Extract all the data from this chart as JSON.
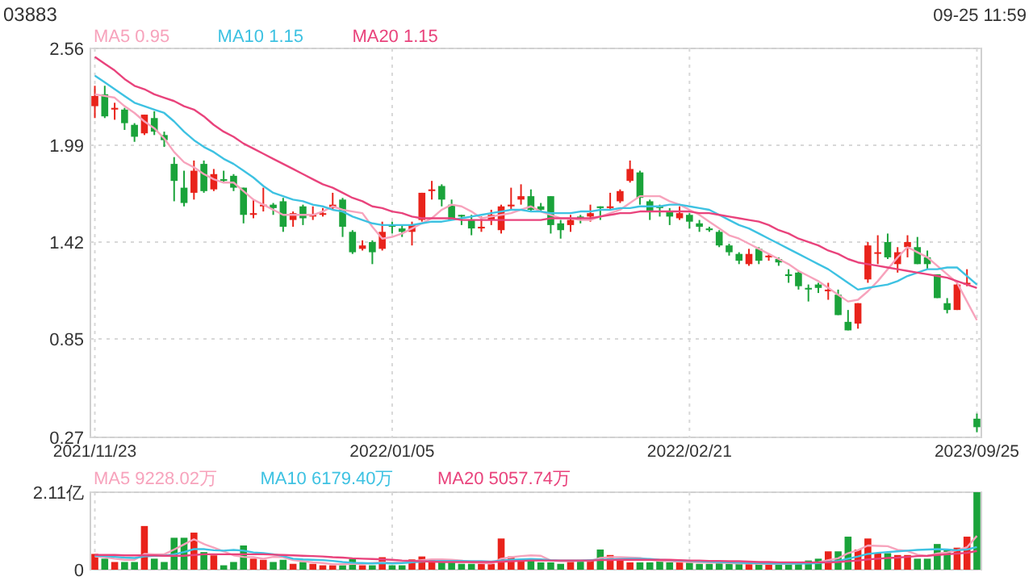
{
  "chart_data": [
    {
      "type": "candlestick",
      "title": "03883",
      "subtitle": "09-25 11:59",
      "categories": [
        "2021/11/23",
        null,
        null,
        null,
        null,
        null,
        null,
        null,
        null,
        null,
        null,
        null,
        null,
        null,
        null,
        null,
        null,
        null,
        null,
        null,
        null,
        null,
        null,
        null,
        null,
        null,
        null,
        null,
        null,
        null,
        "2022/01/05",
        null,
        null,
        null,
        null,
        null,
        null,
        null,
        null,
        null,
        null,
        null,
        null,
        null,
        null,
        null,
        null,
        null,
        null,
        null,
        null,
        null,
        null,
        null,
        null,
        null,
        null,
        null,
        null,
        null,
        "2022/02/21",
        null,
        null,
        null,
        null,
        null,
        null,
        null,
        null,
        null,
        null,
        null,
        null,
        null,
        null,
        null,
        null,
        null,
        null,
        null,
        null,
        null,
        null,
        null,
        null,
        null,
        null,
        null,
        null,
        "2023/09/25"
      ],
      "ohlc": [
        [
          2.22,
          2.34,
          2.15,
          2.28
        ],
        [
          2.29,
          2.34,
          2.15,
          2.16
        ],
        [
          2.2,
          2.24,
          2.14,
          2.21
        ],
        [
          2.2,
          2.21,
          2.08,
          2.12
        ],
        [
          2.11,
          2.12,
          2.01,
          2.04
        ],
        [
          2.06,
          2.17,
          2.05,
          2.17
        ],
        [
          2.15,
          2.19,
          2.05,
          2.07
        ],
        [
          2.05,
          2.07,
          1.98,
          2.02
        ],
        [
          1.88,
          1.92,
          1.66,
          1.78
        ],
        [
          1.74,
          1.84,
          1.63,
          1.65
        ],
        [
          1.71,
          1.9,
          1.67,
          1.84
        ],
        [
          1.88,
          1.9,
          1.71,
          1.72
        ],
        [
          1.73,
          1.85,
          1.72,
          1.82
        ],
        [
          1.79,
          1.84,
          1.77,
          1.78
        ],
        [
          1.81,
          1.82,
          1.72,
          1.74
        ],
        [
          1.74,
          1.74,
          1.53,
          1.58
        ],
        [
          1.58,
          1.67,
          1.56,
          1.59
        ],
        [
          1.63,
          1.74,
          1.6,
          1.64
        ],
        [
          1.64,
          1.65,
          1.58,
          1.62
        ],
        [
          1.66,
          1.68,
          1.48,
          1.51
        ],
        [
          1.55,
          1.6,
          1.51,
          1.59
        ],
        [
          1.63,
          1.64,
          1.52,
          1.56
        ],
        [
          1.57,
          1.63,
          1.55,
          1.58
        ],
        [
          1.58,
          1.62,
          1.57,
          1.59
        ],
        [
          1.62,
          1.71,
          1.61,
          1.64
        ],
        [
          1.67,
          1.68,
          1.45,
          1.51
        ],
        [
          1.48,
          1.49,
          1.35,
          1.36
        ],
        [
          1.38,
          1.43,
          1.37,
          1.4
        ],
        [
          1.42,
          1.43,
          1.29,
          1.36
        ],
        [
          1.38,
          1.54,
          1.37,
          1.48
        ],
        [
          1.52,
          1.54,
          1.47,
          1.51
        ],
        [
          1.5,
          1.52,
          1.45,
          1.48
        ],
        [
          1.48,
          1.54,
          1.4,
          1.52
        ],
        [
          1.55,
          1.71,
          1.54,
          1.71
        ],
        [
          1.72,
          1.78,
          1.67,
          1.73
        ],
        [
          1.75,
          1.76,
          1.63,
          1.67
        ],
        [
          1.64,
          1.67,
          1.55,
          1.55
        ],
        [
          1.58,
          1.58,
          1.52,
          1.57
        ],
        [
          1.55,
          1.58,
          1.46,
          1.5
        ],
        [
          1.5,
          1.57,
          1.48,
          1.51
        ],
        [
          1.55,
          1.61,
          1.52,
          1.58
        ],
        [
          1.49,
          1.64,
          1.47,
          1.63
        ],
        [
          1.63,
          1.74,
          1.61,
          1.64
        ],
        [
          1.67,
          1.76,
          1.64,
          1.69
        ],
        [
          1.69,
          1.73,
          1.6,
          1.61
        ],
        [
          1.63,
          1.65,
          1.6,
          1.61
        ],
        [
          1.69,
          1.69,
          1.47,
          1.52
        ],
        [
          1.53,
          1.55,
          1.44,
          1.49
        ],
        [
          1.52,
          1.58,
          1.48,
          1.55
        ],
        [
          1.57,
          1.58,
          1.53,
          1.56
        ],
        [
          1.57,
          1.64,
          1.54,
          1.59
        ],
        [
          1.63,
          1.63,
          1.55,
          1.62
        ],
        [
          1.62,
          1.71,
          1.61,
          1.63
        ],
        [
          1.66,
          1.73,
          1.65,
          1.72
        ],
        [
          1.78,
          1.9,
          1.77,
          1.85
        ],
        [
          1.83,
          1.84,
          1.64,
          1.68
        ],
        [
          1.66,
          1.67,
          1.55,
          1.6
        ],
        [
          1.63,
          1.64,
          1.57,
          1.62
        ],
        [
          1.6,
          1.62,
          1.52,
          1.57
        ],
        [
          1.56,
          1.63,
          1.55,
          1.59
        ],
        [
          1.58,
          1.59,
          1.5,
          1.54
        ],
        [
          1.53,
          1.55,
          1.48,
          1.51
        ],
        [
          1.5,
          1.51,
          1.48,
          1.49
        ],
        [
          1.48,
          1.49,
          1.39,
          1.4
        ],
        [
          1.4,
          1.41,
          1.34,
          1.36
        ],
        [
          1.35,
          1.36,
          1.29,
          1.31
        ],
        [
          1.29,
          1.38,
          1.28,
          1.35
        ],
        [
          1.38,
          1.39,
          1.29,
          1.31
        ],
        [
          1.33,
          1.35,
          1.31,
          1.34
        ],
        [
          1.32,
          1.33,
          1.28,
          1.3
        ],
        [
          1.23,
          1.26,
          1.18,
          1.22
        ],
        [
          1.24,
          1.25,
          1.14,
          1.16
        ],
        [
          1.15,
          1.17,
          1.07,
          1.15
        ],
        [
          1.17,
          1.18,
          1.12,
          1.15
        ],
        [
          1.13,
          1.18,
          1.08,
          1.14
        ],
        [
          1.11,
          1.14,
          0.99,
          0.99
        ],
        [
          0.95,
          1.02,
          0.9,
          0.9
        ],
        [
          0.94,
          1.06,
          0.91,
          1.06
        ],
        [
          1.2,
          1.42,
          1.18,
          1.4
        ],
        [
          1.36,
          1.46,
          1.29,
          1.36
        ],
        [
          1.42,
          1.47,
          1.32,
          1.33
        ],
        [
          1.29,
          1.39,
          1.24,
          1.36
        ],
        [
          1.39,
          1.46,
          1.33,
          1.42
        ],
        [
          1.39,
          1.45,
          1.29,
          1.29
        ],
        [
          1.33,
          1.37,
          1.26,
          1.29
        ],
        [
          1.23,
          1.23,
          1.09,
          1.09
        ],
        [
          1.06,
          1.09,
          1.0,
          1.02
        ],
        [
          1.02,
          1.19,
          1.02,
          1.17
        ],
        [
          1.17,
          1.26,
          1.16,
          1.18
        ],
        [
          0.38,
          0.41,
          0.3,
          0.33
        ]
      ],
      "colors": [
        "#e9231b",
        "#1aa33a",
        "#e9231b",
        "#1aa33a",
        "#1aa33a",
        "#e9231b",
        "#1aa33a",
        "#1aa33a",
        "#1aa33a",
        "#1aa33a",
        "#e9231b",
        "#1aa33a",
        "#e9231b",
        "#1aa33a",
        "#1aa33a",
        "#1aa33a",
        "#e9231b",
        "#e9231b",
        "#1aa33a",
        "#1aa33a",
        "#e9231b",
        "#1aa33a",
        "#e9231b",
        "#e9231b",
        "#e9231b",
        "#1aa33a",
        "#1aa33a",
        "#e9231b",
        "#1aa33a",
        "#e9231b",
        "#1aa33a",
        "#1aa33a",
        "#e9231b",
        "#e9231b",
        "#e9231b",
        "#1aa33a",
        "#1aa33a",
        "#1aa33a",
        "#1aa33a",
        "#e9231b",
        "#e9231b",
        "#e9231b",
        "#e9231b",
        "#e9231b",
        "#1aa33a",
        "#1aa33a",
        "#1aa33a",
        "#1aa33a",
        "#e9231b",
        "#1aa33a",
        "#e9231b",
        "#1aa33a",
        "#e9231b",
        "#e9231b",
        "#e9231b",
        "#1aa33a",
        "#1aa33a",
        "#1aa33a",
        "#1aa33a",
        "#e9231b",
        "#1aa33a",
        "#1aa33a",
        "#1aa33a",
        "#1aa33a",
        "#1aa33a",
        "#1aa33a",
        "#e9231b",
        "#1aa33a",
        "#e9231b",
        "#1aa33a",
        "#1aa33a",
        "#1aa33a",
        "#1aa33a",
        "#1aa33a",
        "#e9231b",
        "#1aa33a",
        "#1aa33a",
        "#e9231b",
        "#e9231b",
        "#e9231b",
        "#1aa33a",
        "#e9231b",
        "#e9231b",
        "#1aa33a",
        "#1aa33a",
        "#1aa33a",
        "#1aa33a",
        "#e9231b",
        "#e9231b",
        "#1aa33a"
      ],
      "series": [
        {
          "name": "MA5 0.95",
          "type": "line",
          "color": "#f7a3bc",
          "values": [
            2.29,
            2.28,
            2.27,
            2.22,
            2.18,
            2.13,
            2.09,
            2.03,
            1.95,
            1.89,
            1.86,
            1.82,
            1.79,
            1.77,
            1.77,
            1.72,
            1.67,
            1.64,
            1.61,
            1.58,
            1.58,
            1.58,
            1.58,
            1.6,
            1.63,
            1.61,
            1.6,
            1.59,
            1.51,
            1.44,
            1.45,
            1.47,
            1.5,
            1.53,
            1.56,
            1.61,
            1.64,
            1.63,
            1.6,
            1.56,
            1.57,
            1.58,
            1.59,
            1.61,
            1.63,
            1.6,
            1.58,
            1.56,
            1.56,
            1.55,
            1.55,
            1.57,
            1.59,
            1.61,
            1.65,
            1.69,
            1.69,
            1.69,
            1.66,
            1.64,
            1.61,
            1.58,
            1.54,
            1.5,
            1.46,
            1.44,
            1.41,
            1.38,
            1.35,
            1.32,
            1.29,
            1.25,
            1.22,
            1.19,
            1.15,
            1.11,
            1.07,
            1.08,
            1.13,
            1.19,
            1.26,
            1.33,
            1.39,
            1.36,
            1.33,
            1.28,
            1.23,
            1.18,
            1.07,
            0.96
          ]
        },
        {
          "name": "MA10 1.15",
          "type": "line",
          "color": "#3ec2e2",
          "values": [
            2.4,
            2.36,
            2.32,
            2.28,
            2.24,
            2.22,
            2.2,
            2.18,
            2.13,
            2.07,
            2.02,
            1.98,
            1.95,
            1.91,
            1.88,
            1.84,
            1.8,
            1.75,
            1.71,
            1.69,
            1.67,
            1.66,
            1.64,
            1.63,
            1.61,
            1.6,
            1.57,
            1.55,
            1.53,
            1.52,
            1.52,
            1.52,
            1.52,
            1.53,
            1.54,
            1.54,
            1.55,
            1.56,
            1.57,
            1.58,
            1.59,
            1.6,
            1.61,
            1.61,
            1.6,
            1.6,
            1.59,
            1.59,
            1.59,
            1.6,
            1.6,
            1.61,
            1.61,
            1.62,
            1.62,
            1.63,
            1.63,
            1.63,
            1.64,
            1.64,
            1.63,
            1.62,
            1.61,
            1.58,
            1.55,
            1.52,
            1.5,
            1.47,
            1.44,
            1.41,
            1.38,
            1.35,
            1.32,
            1.29,
            1.26,
            1.22,
            1.18,
            1.14,
            1.15,
            1.16,
            1.17,
            1.19,
            1.22,
            1.24,
            1.26,
            1.26,
            1.27,
            1.27,
            1.22,
            1.17
          ]
        },
        {
          "name": "MA20 1.15",
          "type": "line",
          "color": "#e9437c",
          "values": [
            2.51,
            2.47,
            2.43,
            2.38,
            2.34,
            2.32,
            2.29,
            2.27,
            2.25,
            2.22,
            2.2,
            2.16,
            2.11,
            2.07,
            2.04,
            2.0,
            1.97,
            1.94,
            1.91,
            1.88,
            1.85,
            1.82,
            1.79,
            1.76,
            1.74,
            1.71,
            1.68,
            1.66,
            1.63,
            1.62,
            1.6,
            1.59,
            1.57,
            1.56,
            1.56,
            1.56,
            1.56,
            1.55,
            1.55,
            1.55,
            1.55,
            1.55,
            1.55,
            1.55,
            1.55,
            1.55,
            1.56,
            1.56,
            1.56,
            1.56,
            1.56,
            1.57,
            1.58,
            1.59,
            1.59,
            1.6,
            1.6,
            1.6,
            1.6,
            1.6,
            1.6,
            1.59,
            1.59,
            1.58,
            1.57,
            1.56,
            1.55,
            1.54,
            1.52,
            1.49,
            1.47,
            1.44,
            1.42,
            1.4,
            1.37,
            1.35,
            1.32,
            1.3,
            1.29,
            1.28,
            1.27,
            1.26,
            1.25,
            1.24,
            1.23,
            1.22,
            1.21,
            1.19,
            1.17,
            1.15
          ]
        }
      ],
      "ylim": [
        0.27,
        2.56
      ],
      "yticks": [
        2.56,
        1.99,
        1.42,
        0.85,
        0.27
      ],
      "grid": true,
      "legend": "top left"
    },
    {
      "type": "bar",
      "categories": [
        "2021/11/23",
        null,
        null,
        null,
        null,
        null,
        null,
        null,
        null,
        null,
        null,
        null,
        null,
        null,
        null,
        null,
        null,
        null,
        null,
        null,
        null,
        null,
        null,
        null,
        null,
        null,
        null,
        null,
        null,
        null,
        "2022/01/05",
        null,
        null,
        null,
        null,
        null,
        null,
        null,
        null,
        null,
        null,
        null,
        null,
        null,
        null,
        null,
        null,
        null,
        null,
        null,
        null,
        null,
        null,
        null,
        null,
        null,
        null,
        null,
        null,
        null,
        "2022/02/21",
        null,
        null,
        null,
        null,
        null,
        null,
        null,
        null,
        null,
        null,
        null,
        null,
        null,
        null,
        null,
        null,
        null,
        null,
        null,
        null,
        null,
        null,
        null,
        null,
        null,
        null,
        null,
        null,
        "2023/09/25"
      ],
      "series": [
        {
          "type": "bar",
          "values": [
            0.43,
            0.3,
            0.21,
            0.21,
            0.21,
            1.19,
            0.3,
            0.21,
            0.87,
            0.87,
            1.01,
            0.48,
            0.39,
            0.12,
            0.21,
            0.66,
            0.3,
            0.27,
            0.21,
            0.27,
            0.16,
            0.21,
            0.16,
            0.12,
            0.12,
            0.12,
            0.3,
            0.12,
            0.12,
            0.34,
            0.12,
            0.12,
            0.28,
            0.36,
            0.28,
            0.2,
            0.2,
            0.16,
            0.16,
            0.16,
            0.16,
            0.85,
            0.36,
            0.25,
            0.25,
            0.2,
            0.2,
            0.16,
            0.25,
            0.25,
            0.25,
            0.55,
            0.4,
            0.25,
            0.2,
            0.2,
            0.2,
            0.25,
            0.2,
            0.2,
            0.2,
            0.16,
            0.16,
            0.2,
            0.16,
            0.16,
            0.16,
            0.16,
            0.16,
            0.16,
            0.16,
            0.2,
            0.25,
            0.3,
            0.5,
            0.5,
            0.9,
            0.55,
            0.85,
            0.45,
            0.45,
            0.4,
            0.4,
            0.3,
            0.3,
            0.7,
            0.55,
            0.6,
            0.9,
            2.11
          ],
          "colors": [
            "#e9231b",
            "#1aa33a",
            "#e9231b",
            "#1aa33a",
            "#1aa33a",
            "#e9231b",
            "#1aa33a",
            "#1aa33a",
            "#1aa33a",
            "#1aa33a",
            "#e9231b",
            "#1aa33a",
            "#e9231b",
            "#1aa33a",
            "#1aa33a",
            "#1aa33a",
            "#e9231b",
            "#e9231b",
            "#1aa33a",
            "#1aa33a",
            "#e9231b",
            "#1aa33a",
            "#e9231b",
            "#e9231b",
            "#e9231b",
            "#1aa33a",
            "#1aa33a",
            "#e9231b",
            "#1aa33a",
            "#e9231b",
            "#1aa33a",
            "#1aa33a",
            "#e9231b",
            "#e9231b",
            "#e9231b",
            "#1aa33a",
            "#1aa33a",
            "#1aa33a",
            "#1aa33a",
            "#e9231b",
            "#e9231b",
            "#e9231b",
            "#e9231b",
            "#e9231b",
            "#1aa33a",
            "#1aa33a",
            "#1aa33a",
            "#1aa33a",
            "#e9231b",
            "#1aa33a",
            "#e9231b",
            "#1aa33a",
            "#e9231b",
            "#e9231b",
            "#e9231b",
            "#1aa33a",
            "#1aa33a",
            "#1aa33a",
            "#1aa33a",
            "#e9231b",
            "#1aa33a",
            "#1aa33a",
            "#1aa33a",
            "#1aa33a",
            "#1aa33a",
            "#1aa33a",
            "#e9231b",
            "#1aa33a",
            "#e9231b",
            "#1aa33a",
            "#1aa33a",
            "#1aa33a",
            "#1aa33a",
            "#1aa33a",
            "#e9231b",
            "#1aa33a",
            "#1aa33a",
            "#e9231b",
            "#e9231b",
            "#e9231b",
            "#1aa33a",
            "#e9231b",
            "#e9231b",
            "#1aa33a",
            "#1aa33a",
            "#1aa33a",
            "#1aa33a",
            "#e9231b",
            "#e9231b",
            "#1aa33a"
          ]
        },
        {
          "name": "MA5 9228.02万",
          "type": "line",
          "color": "#f7a3bc",
          "values": [
            0.36,
            0.34,
            0.3,
            0.27,
            0.27,
            0.43,
            0.42,
            0.42,
            0.55,
            0.69,
            0.83,
            0.7,
            0.6,
            0.5,
            0.39,
            0.35,
            0.34,
            0.3,
            0.35,
            0.34,
            0.26,
            0.23,
            0.2,
            0.18,
            0.15,
            0.15,
            0.16,
            0.16,
            0.18,
            0.2,
            0.19,
            0.2,
            0.23,
            0.26,
            0.28,
            0.28,
            0.27,
            0.25,
            0.2,
            0.18,
            0.17,
            0.3,
            0.34,
            0.37,
            0.39,
            0.38,
            0.25,
            0.23,
            0.23,
            0.24,
            0.24,
            0.32,
            0.34,
            0.34,
            0.33,
            0.32,
            0.27,
            0.24,
            0.23,
            0.22,
            0.21,
            0.2,
            0.19,
            0.19,
            0.18,
            0.17,
            0.17,
            0.16,
            0.16,
            0.16,
            0.16,
            0.17,
            0.18,
            0.2,
            0.26,
            0.31,
            0.45,
            0.53,
            0.66,
            0.65,
            0.64,
            0.54,
            0.51,
            0.41,
            0.37,
            0.44,
            0.47,
            0.53,
            0.61,
            0.92
          ]
        },
        {
          "name": "MA10 6179.40万",
          "type": "line",
          "color": "#3ec2e2",
          "values": [
            0.38,
            0.37,
            0.35,
            0.33,
            0.32,
            0.36,
            0.38,
            0.38,
            0.42,
            0.48,
            0.56,
            0.56,
            0.53,
            0.52,
            0.54,
            0.52,
            0.47,
            0.45,
            0.42,
            0.37,
            0.3,
            0.28,
            0.27,
            0.26,
            0.24,
            0.21,
            0.19,
            0.18,
            0.17,
            0.18,
            0.17,
            0.18,
            0.2,
            0.22,
            0.23,
            0.24,
            0.24,
            0.24,
            0.23,
            0.23,
            0.22,
            0.25,
            0.27,
            0.28,
            0.29,
            0.28,
            0.26,
            0.25,
            0.25,
            0.25,
            0.26,
            0.27,
            0.28,
            0.29,
            0.3,
            0.3,
            0.29,
            0.27,
            0.26,
            0.25,
            0.24,
            0.23,
            0.22,
            0.21,
            0.2,
            0.19,
            0.18,
            0.18,
            0.17,
            0.17,
            0.17,
            0.17,
            0.17,
            0.18,
            0.21,
            0.24,
            0.3,
            0.36,
            0.43,
            0.46,
            0.48,
            0.5,
            0.52,
            0.54,
            0.55,
            0.56,
            0.55,
            0.53,
            0.55,
            0.62
          ]
        },
        {
          "name": "MA20 5057.74万",
          "type": "line",
          "color": "#e9437c",
          "values": [
            0.4,
            0.4,
            0.4,
            0.39,
            0.39,
            0.39,
            0.39,
            0.38,
            0.38,
            0.38,
            0.4,
            0.42,
            0.42,
            0.42,
            0.42,
            0.42,
            0.42,
            0.42,
            0.41,
            0.4,
            0.39,
            0.38,
            0.37,
            0.36,
            0.34,
            0.33,
            0.31,
            0.3,
            0.29,
            0.28,
            0.27,
            0.25,
            0.24,
            0.23,
            0.22,
            0.21,
            0.21,
            0.21,
            0.21,
            0.21,
            0.21,
            0.22,
            0.23,
            0.24,
            0.25,
            0.25,
            0.25,
            0.25,
            0.25,
            0.25,
            0.25,
            0.26,
            0.26,
            0.27,
            0.27,
            0.27,
            0.27,
            0.27,
            0.27,
            0.26,
            0.25,
            0.25,
            0.24,
            0.24,
            0.23,
            0.23,
            0.22,
            0.21,
            0.21,
            0.2,
            0.2,
            0.2,
            0.2,
            0.2,
            0.2,
            0.21,
            0.23,
            0.25,
            0.28,
            0.3,
            0.32,
            0.33,
            0.35,
            0.37,
            0.38,
            0.4,
            0.42,
            0.44,
            0.46,
            0.51
          ]
        }
      ],
      "ylim": [
        0,
        2.11
      ],
      "yticks": [
        {
          "value": 2.11,
          "label": "2.11亿"
        },
        0
      ],
      "grid": true,
      "legend": "top left",
      "tick_labels": "y"
    }
  ]
}
